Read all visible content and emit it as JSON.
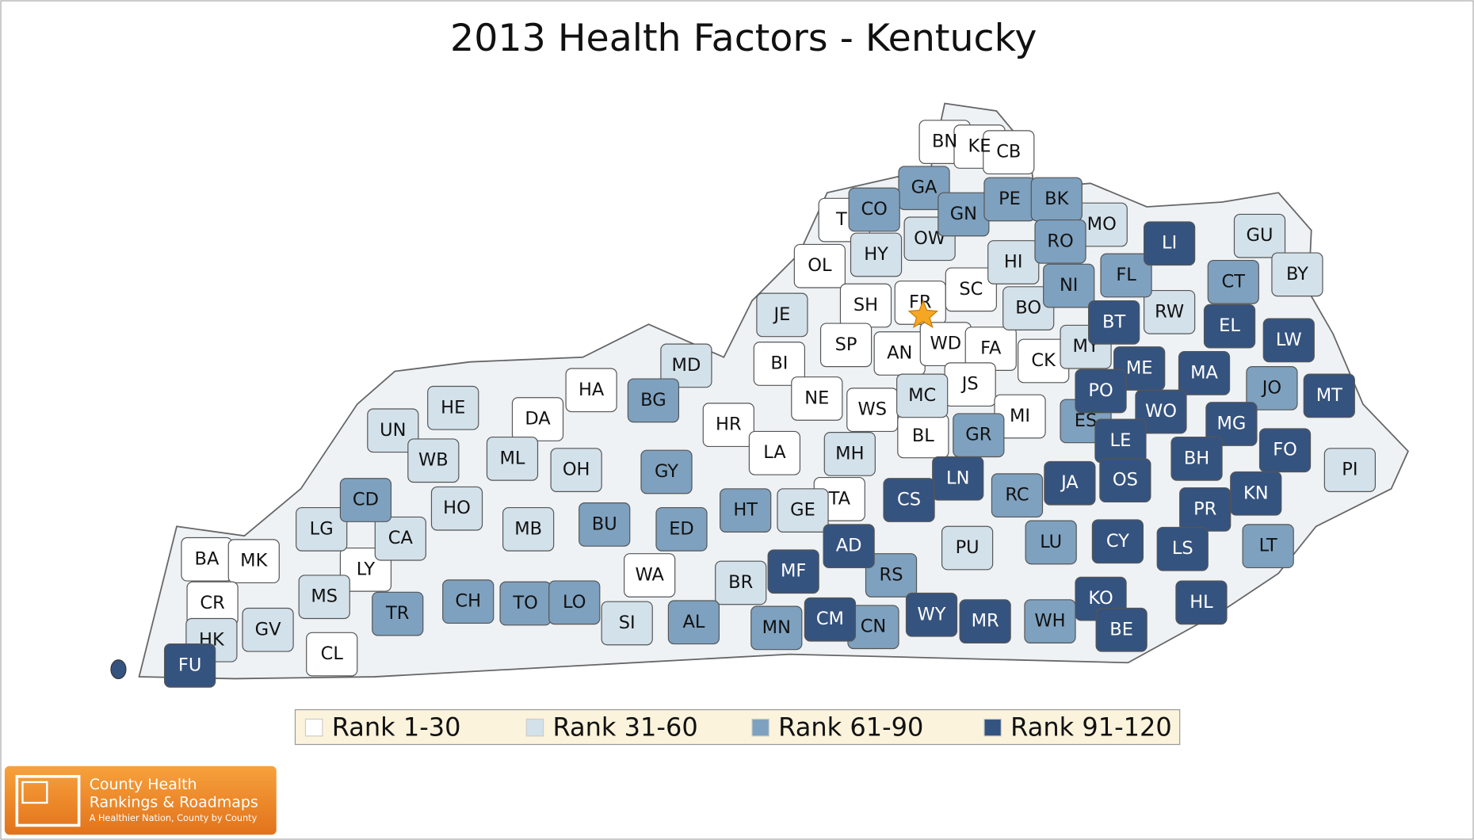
{
  "title": "2013 Health Factors - Kentucky",
  "groups": [
    {
      "label": "Rank 1-30",
      "color": "#ffffff",
      "counties": [
        "BN",
        "KE",
        "CB",
        "TI",
        "OL",
        "SH",
        "FR",
        "SC",
        "SP",
        "AN",
        "WD",
        "FA",
        "CK",
        "BI",
        "HA",
        "JS",
        "NE",
        "WS",
        "DA",
        "MI",
        "HR",
        "BL",
        "LA",
        "TA",
        "BA",
        "MK",
        "LY",
        "WA",
        "CR",
        "CL"
      ]
    },
    {
      "label": "Rank 31-60",
      "color": "#d3e1ea",
      "counties": [
        "MO",
        "OW",
        "HY",
        "HI",
        "GU",
        "BY",
        "BO",
        "RW",
        "JE",
        "MY",
        "MD",
        "MC",
        "HE",
        "UN",
        "WB",
        "ML",
        "MH",
        "OH",
        "HO",
        "GE",
        "LG",
        "CA",
        "MB",
        "PU",
        "BR",
        "MS",
        "GV",
        "SI",
        "HK",
        "PI"
      ]
    },
    {
      "label": "Rank 61-90",
      "color": "#7ea1bf",
      "counties": [
        "GA",
        "CO",
        "GN",
        "PE",
        "BK",
        "RO",
        "NI",
        "FL",
        "CT",
        "JO",
        "BG",
        "ES",
        "GR",
        "GY",
        "CD",
        "RC",
        "HT",
        "BU",
        "ED",
        "LU",
        "LT",
        "RS",
        "CH",
        "TO",
        "LO",
        "TR",
        "AL",
        "MN",
        "CN",
        "WH"
      ]
    },
    {
      "label": "Rank 91-120",
      "color": "#35537f",
      "counties": [
        "LI",
        "BT",
        "EL",
        "LW",
        "ME",
        "MA",
        "PO",
        "MT",
        "WO",
        "MG",
        "LE",
        "FO",
        "BH",
        "LN",
        "CS",
        "JA",
        "OS",
        "KN",
        "PR",
        "AD",
        "CY",
        "LS",
        "MF",
        "KO",
        "HL",
        "CM",
        "WY",
        "MR",
        "BE",
        "FU"
      ]
    }
  ],
  "logo": {
    "line1": "County Health",
    "line2": "Rankings & Roadmaps",
    "tagline": "A Healthier Nation, County by County"
  }
}
